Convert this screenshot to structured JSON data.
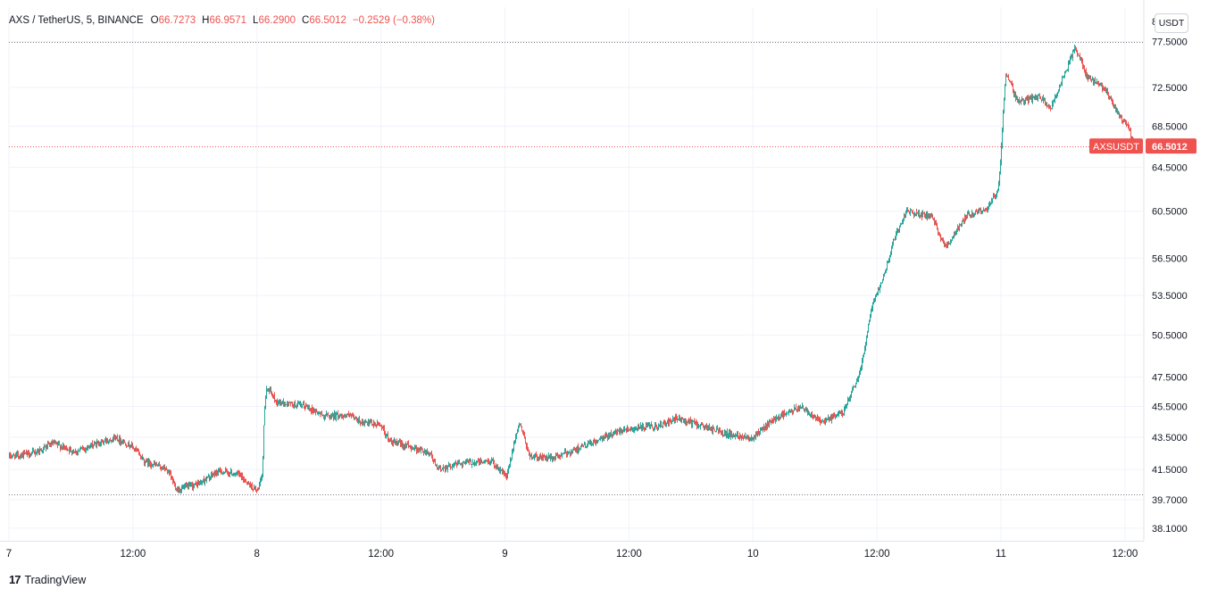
{
  "legend": {
    "symbol": "AXS / TetherUS, 5, BINANCE",
    "open_label": "O",
    "open": "66.7273",
    "high_label": "H",
    "high": "66.9571",
    "low_label": "L",
    "low": "66.2900",
    "close_label": "C",
    "close": "66.5012",
    "change": "−0.2529 (−0.38%)"
  },
  "currency_button": "USDT",
  "price_tag": {
    "symbol": "AXSUSDT",
    "value": "66.5012"
  },
  "top_partial_label": "8",
  "branding": {
    "logo_text": "TradingView",
    "logo_mark": "17"
  },
  "colors": {
    "up": "#26a69a",
    "down": "#ef5350",
    "grid": "#f0f3fa",
    "text": "#131722"
  },
  "chart_data": {
    "type": "candlestick",
    "title": "AXS / TetherUS, 5, BINANCE",
    "y_scale": "log",
    "ylim": [
      37.4,
      81.5
    ],
    "y_ticks": [
      "77.5000",
      "72.5000",
      "68.5000",
      "64.5000",
      "60.5000",
      "56.5000",
      "53.5000",
      "50.5000",
      "47.5000",
      "45.5000",
      "43.5000",
      "41.5000",
      "39.7000",
      "38.1000"
    ],
    "x_labels": [
      {
        "label": "7",
        "day": 0.0
      },
      {
        "label": "12:00",
        "day": 0.5
      },
      {
        "label": "8",
        "day": 1.0
      },
      {
        "label": "12:00",
        "day": 1.5
      },
      {
        "label": "9",
        "day": 2.0
      },
      {
        "label": "12:00",
        "day": 2.5
      },
      {
        "label": "10",
        "day": 3.0
      },
      {
        "label": "12:00",
        "day": 3.5
      },
      {
        "label": "11",
        "day": 4.0
      },
      {
        "label": "12:00",
        "day": 4.5
      }
    ],
    "reference_lines": [
      {
        "price": 77.45,
        "kind": "high"
      },
      {
        "price": 40.0,
        "kind": "low"
      },
      {
        "price": 66.5012,
        "kind": "last"
      }
    ],
    "series": [
      {
        "day_start": 0.0,
        "day_end": 4.54,
        "keyframes": [
          [
            0.0,
            42.3
          ],
          [
            0.1,
            42.5
          ],
          [
            0.18,
            43.1
          ],
          [
            0.27,
            42.6
          ],
          [
            0.34,
            43.0
          ],
          [
            0.43,
            43.5
          ],
          [
            0.5,
            42.9
          ],
          [
            0.55,
            42.0
          ],
          [
            0.64,
            41.5
          ],
          [
            0.68,
            40.3
          ],
          [
            0.76,
            40.6
          ],
          [
            0.85,
            41.4
          ],
          [
            0.93,
            41.2
          ],
          [
            1.0,
            40.2
          ],
          [
            1.02,
            40.9
          ],
          [
            1.04,
            46.9
          ],
          [
            1.08,
            45.8
          ],
          [
            1.2,
            45.5
          ],
          [
            1.27,
            44.9
          ],
          [
            1.37,
            44.9
          ],
          [
            1.43,
            44.4
          ],
          [
            1.5,
            44.3
          ],
          [
            1.54,
            43.2
          ],
          [
            1.6,
            43.0
          ],
          [
            1.7,
            42.5
          ],
          [
            1.73,
            41.5
          ],
          [
            1.82,
            41.9
          ],
          [
            1.95,
            42.0
          ],
          [
            2.01,
            41.0
          ],
          [
            2.06,
            44.5
          ],
          [
            2.1,
            42.3
          ],
          [
            2.2,
            42.2
          ],
          [
            2.38,
            43.3
          ],
          [
            2.47,
            44.0
          ],
          [
            2.62,
            44.2
          ],
          [
            2.7,
            44.7
          ],
          [
            2.9,
            43.7
          ],
          [
            3.0,
            43.5
          ],
          [
            3.1,
            44.8
          ],
          [
            3.2,
            45.5
          ],
          [
            3.28,
            44.4
          ],
          [
            3.37,
            45.2
          ],
          [
            3.4,
            46.4
          ],
          [
            3.43,
            47.6
          ],
          [
            3.48,
            52.5
          ],
          [
            3.53,
            55.2
          ],
          [
            3.57,
            58.0
          ],
          [
            3.62,
            60.5
          ],
          [
            3.66,
            60.3
          ],
          [
            3.72,
            60.0
          ],
          [
            3.78,
            57.4
          ],
          [
            3.86,
            60.1
          ],
          [
            3.95,
            60.8
          ],
          [
            3.99,
            62.3
          ],
          [
            4.0,
            65.2
          ],
          [
            4.02,
            74.0
          ],
          [
            4.07,
            71.0
          ],
          [
            4.16,
            71.5
          ],
          [
            4.2,
            70.3
          ],
          [
            4.26,
            73.9
          ],
          [
            4.3,
            76.8
          ],
          [
            4.35,
            73.6
          ],
          [
            4.42,
            72.3
          ],
          [
            4.48,
            69.5
          ],
          [
            4.51,
            68.6
          ],
          [
            4.54,
            66.5
          ]
        ]
      }
    ]
  }
}
